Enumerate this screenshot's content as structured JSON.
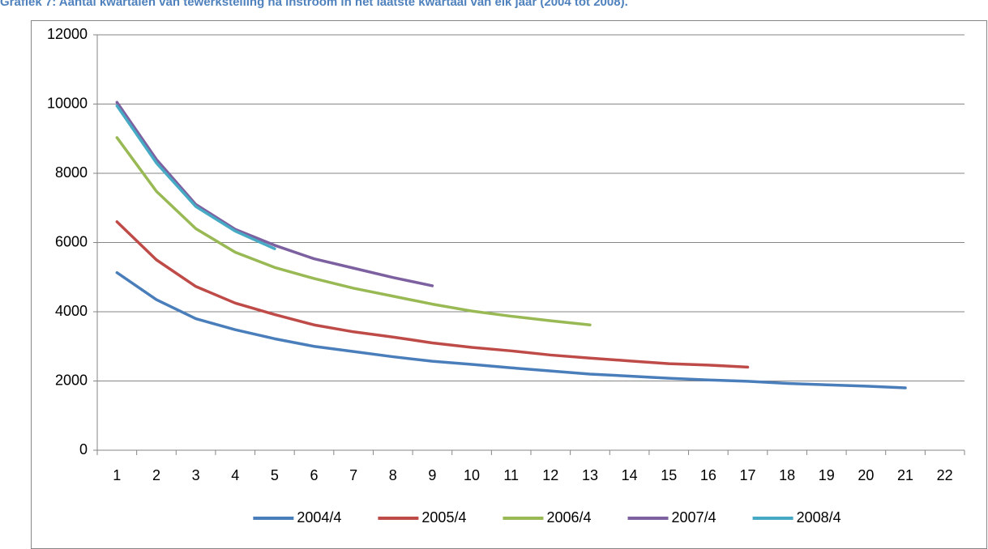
{
  "chart_data": {
    "type": "line",
    "title": "Grafiek 7: Aantal kwartalen van tewerkstelling na instroom in het laatste kwartaal van elk jaar (2004 tot 2008).",
    "categories": [
      "1",
      "2",
      "3",
      "4",
      "5",
      "6",
      "7",
      "8",
      "9",
      "10",
      "11",
      "12",
      "13",
      "14",
      "15",
      "16",
      "17",
      "18",
      "19",
      "20",
      "21",
      "22"
    ],
    "series": [
      {
        "name": "2004/4",
        "color": "#4a7ebb",
        "values": [
          5130,
          4350,
          3800,
          3480,
          3220,
          3000,
          2850,
          2700,
          2570,
          2480,
          2380,
          2290,
          2200,
          2140,
          2080,
          2030,
          1990,
          1930,
          1890,
          1850,
          1800,
          null
        ]
      },
      {
        "name": "2005/4",
        "color": "#be4b48",
        "values": [
          6600,
          5500,
          4730,
          4250,
          3920,
          3620,
          3420,
          3270,
          3100,
          2970,
          2870,
          2750,
          2660,
          2580,
          2500,
          2460,
          2400,
          null,
          null,
          null,
          null,
          null
        ]
      },
      {
        "name": "2006/4",
        "color": "#98b954",
        "values": [
          9030,
          7480,
          6400,
          5720,
          5280,
          4960,
          4680,
          4450,
          4220,
          4020,
          3870,
          3740,
          3620,
          null,
          null,
          null,
          null,
          null,
          null,
          null,
          null,
          null
        ]
      },
      {
        "name": "2007/4",
        "color": "#7d60a0",
        "values": [
          10050,
          8400,
          7100,
          6380,
          5920,
          5530,
          5260,
          4990,
          4750,
          null,
          null,
          null,
          null,
          null,
          null,
          null,
          null,
          null,
          null,
          null,
          null,
          null
        ]
      },
      {
        "name": "2008/4",
        "color": "#46aac5",
        "values": [
          9950,
          8300,
          7040,
          6330,
          5820,
          null,
          null,
          null,
          null,
          null,
          null,
          null,
          null,
          null,
          null,
          null,
          null,
          null,
          null,
          null,
          null,
          null
        ]
      }
    ],
    "ylim": [
      0,
      12000
    ],
    "yticks": [
      0,
      2000,
      4000,
      6000,
      8000,
      10000,
      12000
    ],
    "grid": true,
    "legend": "bottom"
  }
}
